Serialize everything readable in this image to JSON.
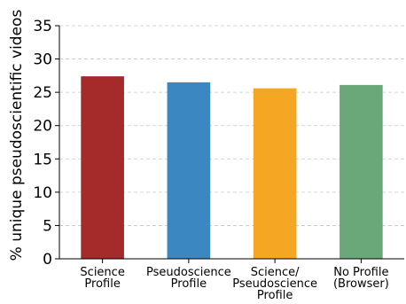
{
  "chart_data": {
    "type": "bar",
    "categories": [
      [
        "Science",
        "Profile"
      ],
      [
        "Pseudoscience",
        "Profile"
      ],
      [
        "Science/",
        "Pseudoscience",
        "Profile"
      ],
      [
        "No Profile",
        "(Browser)"
      ]
    ],
    "values": [
      27.4,
      26.5,
      25.6,
      26.1
    ],
    "colors": [
      "#a52a2a",
      "#3a87c2",
      "#f5a623",
      "#6aa87a"
    ],
    "ylabel": "% unique pseudoscientific videos",
    "xlabel": "",
    "title": "",
    "ylim": [
      0,
      35
    ],
    "yticks": [
      0,
      5,
      10,
      15,
      20,
      25,
      30,
      35
    ],
    "grid": "y-dashed",
    "legend": "none"
  }
}
